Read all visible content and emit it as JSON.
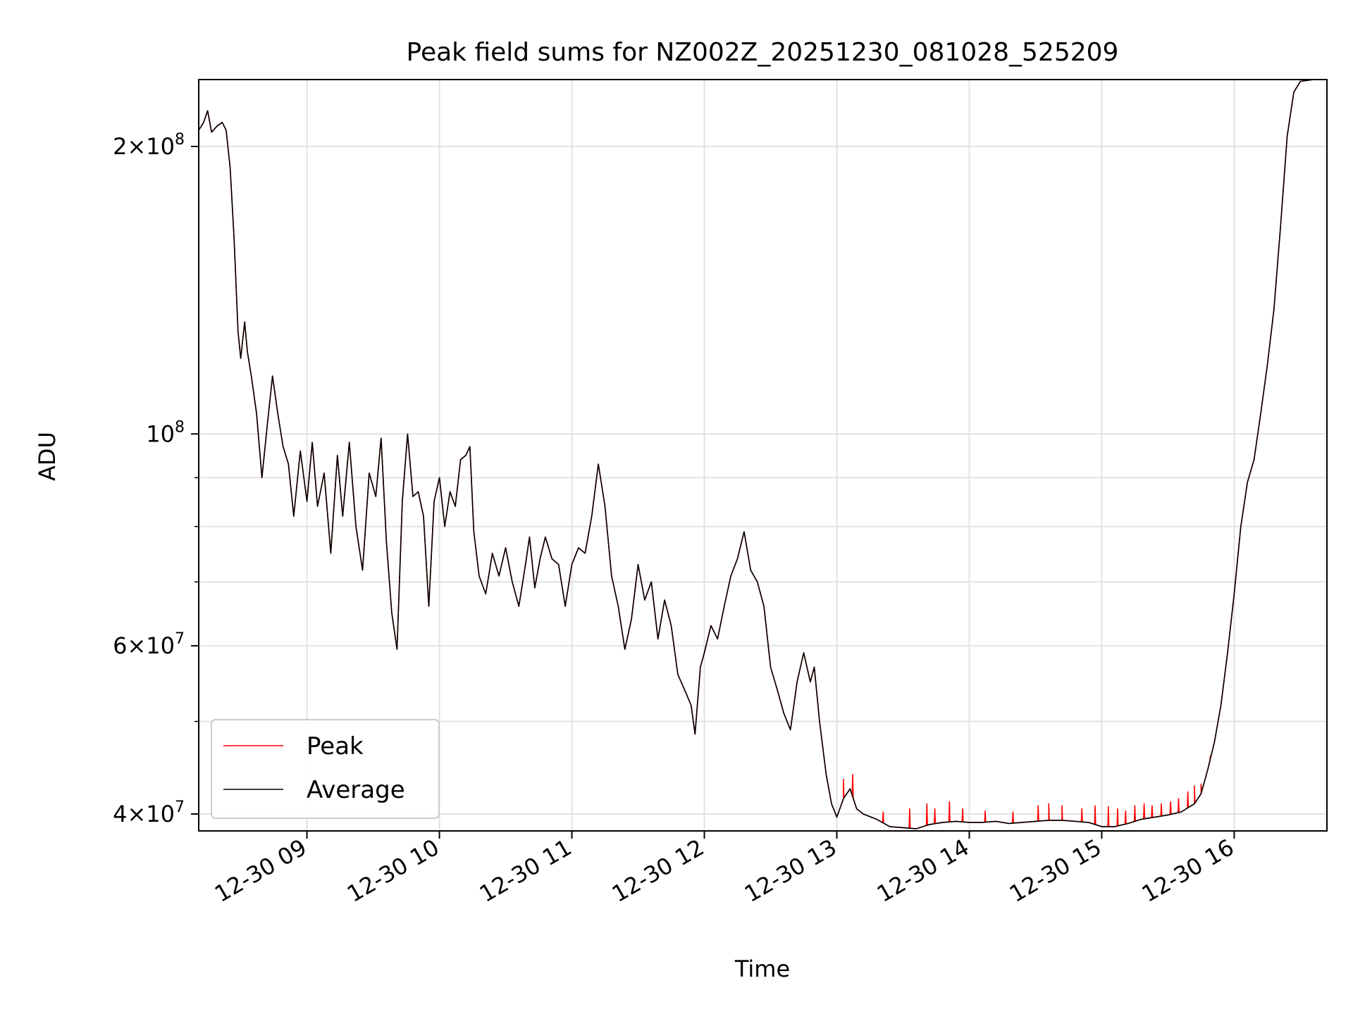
{
  "chart_data": {
    "type": "line",
    "title": "Peak field sums for NZ002Z_20251230_081028_525209",
    "xlabel": "Time",
    "ylabel": "ADU",
    "y_scale": "log",
    "ylim": [
      38400000,
      235000000
    ],
    "xlim_hours": [
      8.183,
      16.7
    ],
    "grid": true,
    "x_ticks": [
      {
        "hour": 9,
        "label": "12-30 09"
      },
      {
        "hour": 10,
        "label": "12-30 10"
      },
      {
        "hour": 11,
        "label": "12-30 11"
      },
      {
        "hour": 12,
        "label": "12-30 12"
      },
      {
        "hour": 13,
        "label": "12-30 13"
      },
      {
        "hour": 14,
        "label": "12-30 14"
      },
      {
        "hour": 15,
        "label": "12-30 15"
      },
      {
        "hour": 16,
        "label": "12-30 16"
      }
    ],
    "y_major_ticks": [
      {
        "value": 40000000,
        "mant": "4",
        "exp": "7"
      },
      {
        "value": 60000000,
        "mant": "6",
        "exp": "7"
      },
      {
        "value": 100000000,
        "mant": "",
        "exp": "8"
      },
      {
        "value": 200000000,
        "mant": "2",
        "exp": "8"
      }
    ],
    "y_minor_ticks": [
      50000000,
      70000000,
      80000000,
      90000000
    ],
    "legend": {
      "position": "lower-left",
      "entries": [
        {
          "name": "Peak",
          "color": "#ff0000"
        },
        {
          "name": "Average",
          "color": "#000000"
        }
      ]
    },
    "series": [
      {
        "name": "Average",
        "color": "#000000",
        "points": [
          [
            8.183,
            208000000.0
          ],
          [
            8.22,
            212000000.0
          ],
          [
            8.25,
            218000000.0
          ],
          [
            8.28,
            207000000.0
          ],
          [
            8.32,
            210000000.0
          ],
          [
            8.36,
            212000000.0
          ],
          [
            8.39,
            208000000.0
          ],
          [
            8.42,
            190000000.0
          ],
          [
            8.45,
            160000000.0
          ],
          [
            8.48,
            128000000.0
          ],
          [
            8.5,
            120000000.0
          ],
          [
            8.53,
            131000000.0
          ],
          [
            8.55,
            122000000.0
          ],
          [
            8.58,
            115000000.0
          ],
          [
            8.62,
            105000000.0
          ],
          [
            8.66,
            90000000.0
          ],
          [
            8.7,
            102000000.0
          ],
          [
            8.74,
            115000000.0
          ],
          [
            8.78,
            105000000.0
          ],
          [
            8.82,
            97000000.0
          ],
          [
            8.86,
            93000000.0
          ],
          [
            8.9,
            82000000.0
          ],
          [
            8.95,
            96000000.0
          ],
          [
            9.0,
            85000000.0
          ],
          [
            9.04,
            98000000.0
          ],
          [
            9.08,
            84000000.0
          ],
          [
            9.13,
            91000000.0
          ],
          [
            9.18,
            75000000.0
          ],
          [
            9.23,
            95000000.0
          ],
          [
            9.27,
            82000000.0
          ],
          [
            9.32,
            98000000.0
          ],
          [
            9.37,
            80000000.0
          ],
          [
            9.42,
            72000000.0
          ],
          [
            9.47,
            91000000.0
          ],
          [
            9.52,
            86000000.0
          ],
          [
            9.56,
            99000000.0
          ],
          [
            9.6,
            77000000.0
          ],
          [
            9.64,
            65000000.0
          ],
          [
            9.68,
            59500000.0
          ],
          [
            9.72,
            85000000.0
          ],
          [
            9.76,
            100000000.0
          ],
          [
            9.8,
            86000000.0
          ],
          [
            9.84,
            87000000.0
          ],
          [
            9.88,
            82000000.0
          ],
          [
            9.92,
            66000000.0
          ],
          [
            9.96,
            85000000.0
          ],
          [
            10.0,
            90000000.0
          ],
          [
            10.04,
            80000000.0
          ],
          [
            10.08,
            87000000.0
          ],
          [
            10.12,
            84000000.0
          ],
          [
            10.16,
            94000000.0
          ],
          [
            10.2,
            95000000.0
          ],
          [
            10.23,
            97000000.0
          ],
          [
            10.26,
            79000000.0
          ],
          [
            10.3,
            71000000.0
          ],
          [
            10.35,
            68000000.0
          ],
          [
            10.4,
            75000000.0
          ],
          [
            10.45,
            71000000.0
          ],
          [
            10.5,
            76000000.0
          ],
          [
            10.55,
            70000000.0
          ],
          [
            10.6,
            66000000.0
          ],
          [
            10.65,
            73000000.0
          ],
          [
            10.68,
            78000000.0
          ],
          [
            10.72,
            69000000.0
          ],
          [
            10.76,
            74000000.0
          ],
          [
            10.8,
            78000000.0
          ],
          [
            10.85,
            74000000.0
          ],
          [
            10.9,
            73000000.0
          ],
          [
            10.95,
            66000000.0
          ],
          [
            11.0,
            73000000.0
          ],
          [
            11.05,
            76000000.0
          ],
          [
            11.1,
            75000000.0
          ],
          [
            11.15,
            82000000.0
          ],
          [
            11.2,
            93000000.0
          ],
          [
            11.25,
            84000000.0
          ],
          [
            11.3,
            71000000.0
          ],
          [
            11.35,
            66000000.0
          ],
          [
            11.4,
            59500000.0
          ],
          [
            11.45,
            64000000.0
          ],
          [
            11.5,
            73000000.0
          ],
          [
            11.55,
            67000000.0
          ],
          [
            11.6,
            70000000.0
          ],
          [
            11.65,
            61000000.0
          ],
          [
            11.7,
            67000000.0
          ],
          [
            11.75,
            63000000.0
          ],
          [
            11.8,
            56000000.0
          ],
          [
            11.85,
            54000000.0
          ],
          [
            11.9,
            52000000.0
          ],
          [
            11.93,
            48500000.0
          ],
          [
            11.97,
            57000000.0
          ],
          [
            12.0,
            59000000.0
          ],
          [
            12.05,
            63000000.0
          ],
          [
            12.1,
            61000000.0
          ],
          [
            12.15,
            66000000.0
          ],
          [
            12.2,
            71000000.0
          ],
          [
            12.25,
            74000000.0
          ],
          [
            12.3,
            79000000.0
          ],
          [
            12.35,
            72000000.0
          ],
          [
            12.4,
            70000000.0
          ],
          [
            12.45,
            66000000.0
          ],
          [
            12.5,
            57000000.0
          ],
          [
            12.55,
            54000000.0
          ],
          [
            12.6,
            51000000.0
          ],
          [
            12.65,
            49000000.0
          ],
          [
            12.7,
            55000000.0
          ],
          [
            12.75,
            59000000.0
          ],
          [
            12.8,
            55000000.0
          ],
          [
            12.83,
            57000000.0
          ],
          [
            12.87,
            50000000.0
          ],
          [
            12.92,
            44000000.0
          ],
          [
            12.96,
            41000000.0
          ],
          [
            13.0,
            39700000.0
          ],
          [
            13.05,
            41500000.0
          ],
          [
            13.1,
            42500000.0
          ],
          [
            13.15,
            40500000.0
          ],
          [
            13.2,
            40000000.0
          ],
          [
            13.3,
            39500000.0
          ],
          [
            13.4,
            38800000.0
          ],
          [
            13.5,
            38700000.0
          ],
          [
            13.6,
            38600000.0
          ],
          [
            13.7,
            39000000.0
          ],
          [
            13.8,
            39200000.0
          ],
          [
            13.9,
            39300000.0
          ],
          [
            14.0,
            39200000.0
          ],
          [
            14.1,
            39200000.0
          ],
          [
            14.2,
            39300000.0
          ],
          [
            14.3,
            39100000.0
          ],
          [
            14.4,
            39200000.0
          ],
          [
            14.5,
            39300000.0
          ],
          [
            14.6,
            39400000.0
          ],
          [
            14.7,
            39400000.0
          ],
          [
            14.8,
            39300000.0
          ],
          [
            14.9,
            39200000.0
          ],
          [
            15.0,
            38800000.0
          ],
          [
            15.1,
            38800000.0
          ],
          [
            15.2,
            39100000.0
          ],
          [
            15.3,
            39500000.0
          ],
          [
            15.4,
            39700000.0
          ],
          [
            15.5,
            39900000.0
          ],
          [
            15.6,
            40200000.0
          ],
          [
            15.7,
            41000000.0
          ],
          [
            15.75,
            42000000.0
          ],
          [
            15.8,
            44500000.0
          ],
          [
            15.85,
            47500000.0
          ],
          [
            15.9,
            52000000.0
          ],
          [
            15.95,
            59000000.0
          ],
          [
            16.0,
            68000000.0
          ],
          [
            16.05,
            80000000.0
          ],
          [
            16.1,
            89000000.0
          ],
          [
            16.15,
            94000000.0
          ],
          [
            16.2,
            105000000.0
          ],
          [
            16.25,
            118000000.0
          ],
          [
            16.3,
            135000000.0
          ],
          [
            16.35,
            165000000.0
          ],
          [
            16.4,
            205000000.0
          ],
          [
            16.45,
            228000000.0
          ],
          [
            16.5,
            234000000.0
          ],
          [
            16.6,
            235000000.0
          ],
          [
            16.7,
            235000000.0
          ]
        ]
      },
      {
        "name": "Peak",
        "color": "#ff0000",
        "base": "Average",
        "spikes": [
          [
            13.05,
            43500000.0
          ],
          [
            13.12,
            44000000.0
          ],
          [
            13.35,
            40200000.0
          ],
          [
            13.55,
            40500000.0
          ],
          [
            13.68,
            41000000.0
          ],
          [
            13.74,
            40500000.0
          ],
          [
            13.85,
            41200000.0
          ],
          [
            13.95,
            40500000.0
          ],
          [
            14.12,
            40300000.0
          ],
          [
            14.33,
            40200000.0
          ],
          [
            14.52,
            40800000.0
          ],
          [
            14.6,
            41000000.0
          ],
          [
            14.7,
            40800000.0
          ],
          [
            14.85,
            40500000.0
          ],
          [
            14.95,
            40800000.0
          ],
          [
            15.05,
            40700000.0
          ],
          [
            15.12,
            40500000.0
          ],
          [
            15.18,
            40300000.0
          ],
          [
            15.25,
            40800000.0
          ],
          [
            15.32,
            41000000.0
          ],
          [
            15.38,
            40800000.0
          ],
          [
            15.45,
            41000000.0
          ],
          [
            15.52,
            41200000.0
          ],
          [
            15.58,
            41500000.0
          ],
          [
            15.65,
            42200000.0
          ],
          [
            15.7,
            42800000.0
          ],
          [
            15.75,
            43000000.0
          ],
          [
            15.82,
            46000000.0
          ]
        ]
      }
    ]
  }
}
